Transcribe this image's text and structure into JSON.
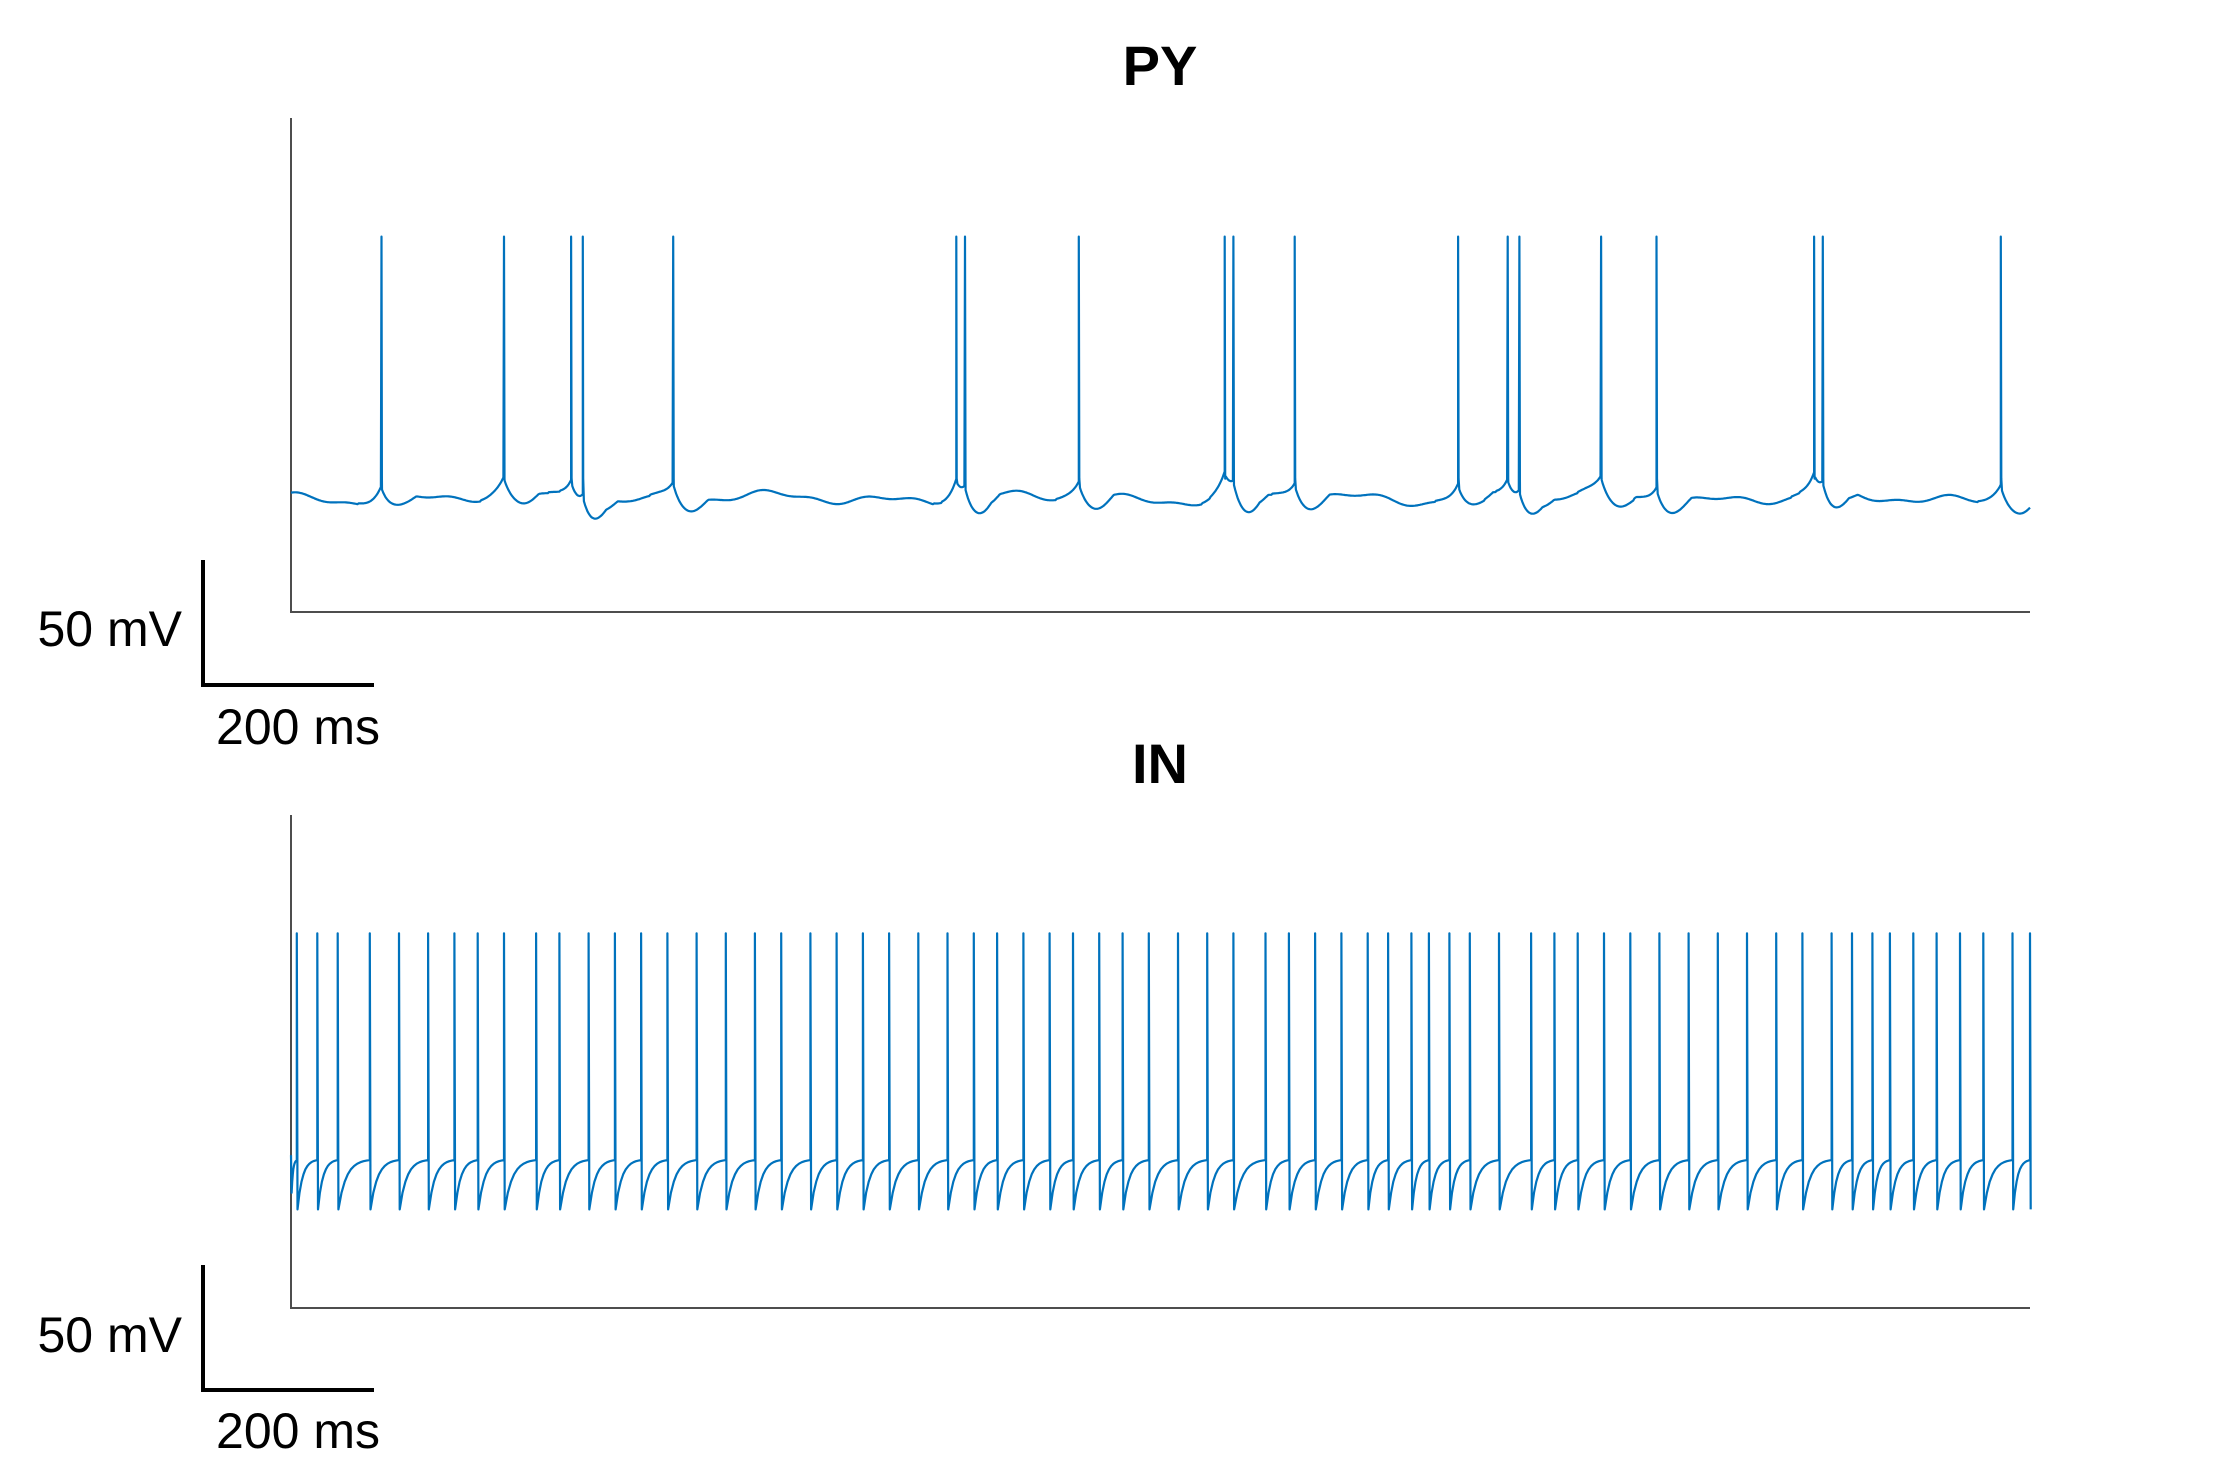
{
  "chart_data": [
    {
      "type": "line",
      "title": "PY",
      "xlabel": "",
      "ylabel": "",
      "grid": false,
      "legend": "none",
      "color": "#0072BD",
      "xlim": [
        0,
        2980
      ],
      "ylim": [
        -120,
        80
      ],
      "units": {
        "x": "ms",
        "y": "mV"
      },
      "scale_bar": {
        "x_label": "200 ms",
        "y_label": "50 mV",
        "x_value": 200,
        "y_value": 50
      },
      "baseline_mV": -74,
      "spike_peak_mV": 32,
      "spike_times_ms": [
        155,
        365,
        480,
        500,
        655,
        1140,
        1155,
        1350,
        1600,
        1615,
        1720,
        2000,
        2085,
        2105,
        2245,
        2340,
        2610,
        2625,
        2930
      ]
    },
    {
      "type": "line",
      "title": "IN",
      "xlabel": "",
      "ylabel": "",
      "grid": false,
      "legend": "none",
      "color": "#0072BD",
      "xlim": [
        0,
        2980
      ],
      "ylim": [
        -120,
        80
      ],
      "units": {
        "x": "ms",
        "y": "mV"
      },
      "scale_bar": {
        "x_label": "200 ms",
        "y_label": "50 mV",
        "x_value": 200,
        "y_value": 50
      },
      "reset_mV": -80,
      "threshold_mV": -60,
      "spike_peak_mV": 32,
      "spike_times_ms": [
        10,
        45,
        80,
        135,
        185,
        235,
        280,
        320,
        365,
        420,
        460,
        510,
        555,
        600,
        645,
        695,
        745,
        795,
        840,
        890,
        935,
        980,
        1025,
        1075,
        1125,
        1170,
        1210,
        1255,
        1300,
        1340,
        1385,
        1425,
        1470,
        1520,
        1570,
        1615,
        1670,
        1710,
        1755,
        1800,
        1845,
        1880,
        1920,
        1950,
        1985,
        2020,
        2070,
        2125,
        2165,
        2205,
        2250,
        2295,
        2345,
        2395,
        2445,
        2495,
        2545,
        2590,
        2640,
        2675,
        2710,
        2740,
        2780,
        2820,
        2860,
        2900,
        2950,
        2980
      ]
    }
  ]
}
